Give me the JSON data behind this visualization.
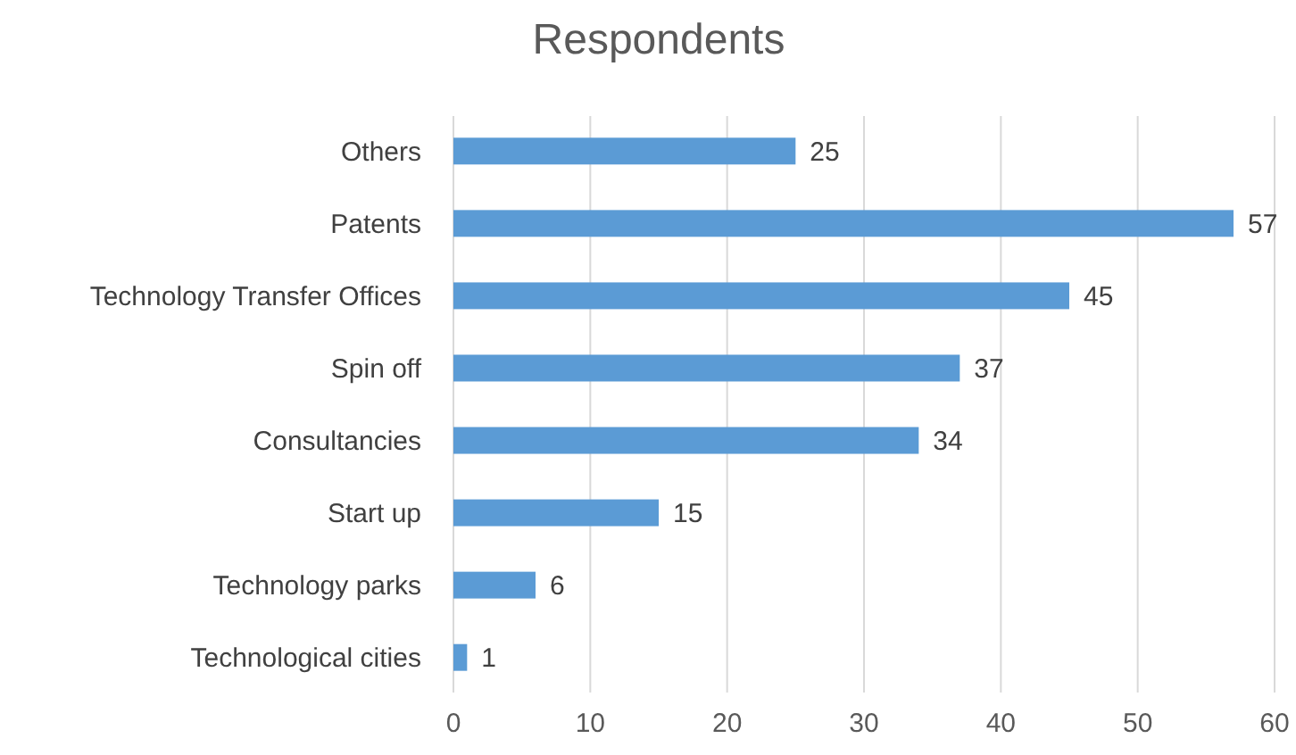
{
  "chart_data": {
    "type": "bar",
    "orientation": "horizontal",
    "title": "Respondents",
    "categories": [
      "Others",
      "Patents",
      "Technology Transfer Offices",
      "Spin off",
      "Consultancies",
      "Start up",
      "Technology parks",
      "Technological cities"
    ],
    "values": [
      25,
      57,
      45,
      37,
      34,
      15,
      6,
      1
    ],
    "color": "#5b9bd5",
    "xlim": [
      0,
      60
    ],
    "xticks": [
      0,
      10,
      20,
      30,
      40,
      50,
      60
    ],
    "grid": "x",
    "data_labels": true
  }
}
